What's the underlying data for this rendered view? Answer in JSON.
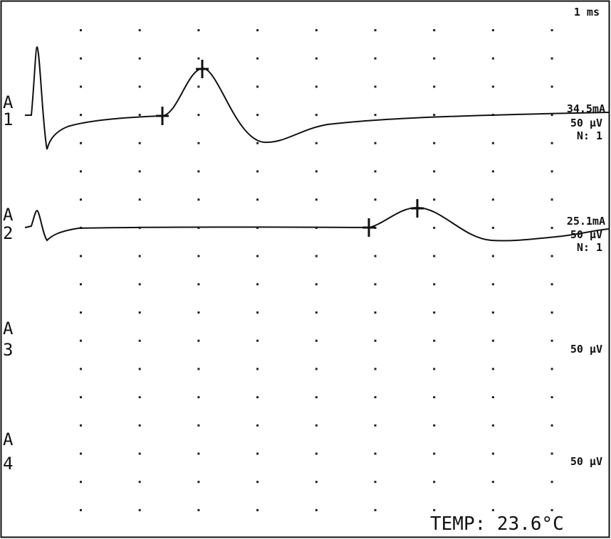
{
  "header": {
    "time_scale": "1 ms"
  },
  "channels": [
    {
      "label": "A",
      "number": "1",
      "stimulus": "34.5mA",
      "sensitivity": "50 µV",
      "averages": "N: 1"
    },
    {
      "label": "A",
      "number": "2",
      "stimulus": "25.1mA",
      "sensitivity": "50 µV",
      "averages": "N: 1"
    },
    {
      "label": "A",
      "number": "3",
      "sensitivity": "50 µV"
    },
    {
      "label": "A",
      "number": "4",
      "sensitivity": "50 µV"
    }
  ],
  "footer": {
    "temperature": "TEMP: 23.6°C"
  }
}
